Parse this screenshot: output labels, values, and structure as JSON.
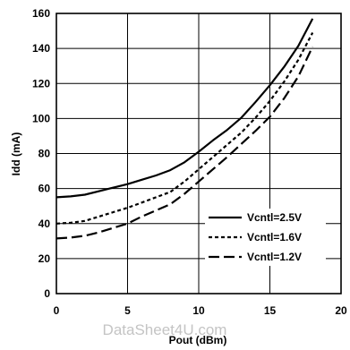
{
  "watermark": "DataSheet4U.com",
  "chart_data": {
    "type": "line",
    "title": "",
    "xlabel": "Pout (dBm)",
    "ylabel": "Idd (mA)",
    "xlim": [
      0,
      20
    ],
    "ylim": [
      0,
      160
    ],
    "xticks": [
      0,
      5,
      10,
      15,
      20
    ],
    "yticks": [
      0,
      20,
      40,
      60,
      80,
      100,
      120,
      140,
      160
    ],
    "grid": true,
    "legend_position": "lower-right",
    "series": [
      {
        "name": "Vcntl=2.5V",
        "style": "solid",
        "x": [
          0,
          1,
          2,
          3,
          4,
          5,
          6,
          7,
          8,
          9,
          10,
          11,
          12,
          13,
          14,
          15,
          16,
          17,
          18
        ],
        "y": [
          55,
          55.5,
          56.5,
          58.5,
          60.5,
          62.5,
          65,
          67.5,
          70.5,
          75,
          81,
          87.5,
          93.5,
          100.5,
          109.5,
          119,
          129.5,
          141.5,
          157
        ]
      },
      {
        "name": "Vcntl=1.6V",
        "style": "dotted",
        "x": [
          0,
          1,
          2,
          3,
          4,
          5,
          6,
          7,
          8,
          9,
          10,
          11,
          12,
          13,
          14,
          15,
          16,
          17,
          18
        ],
        "y": [
          40,
          40.5,
          41.5,
          44,
          46.5,
          49,
          52,
          55,
          58,
          64,
          71,
          78,
          85,
          92,
          100.5,
          110,
          121,
          133.5,
          149
        ]
      },
      {
        "name": "Vcntl=1.2V",
        "style": "dashed",
        "x": [
          0,
          1,
          2,
          3,
          4,
          5,
          6,
          7,
          8,
          9,
          10,
          11,
          12,
          13,
          14,
          15,
          16,
          17,
          18
        ],
        "y": [
          31.5,
          32,
          33,
          35,
          37.5,
          40,
          44,
          47.5,
          51,
          57,
          64,
          71,
          78,
          85.5,
          93,
          101,
          111.5,
          124,
          141
        ]
      }
    ]
  }
}
